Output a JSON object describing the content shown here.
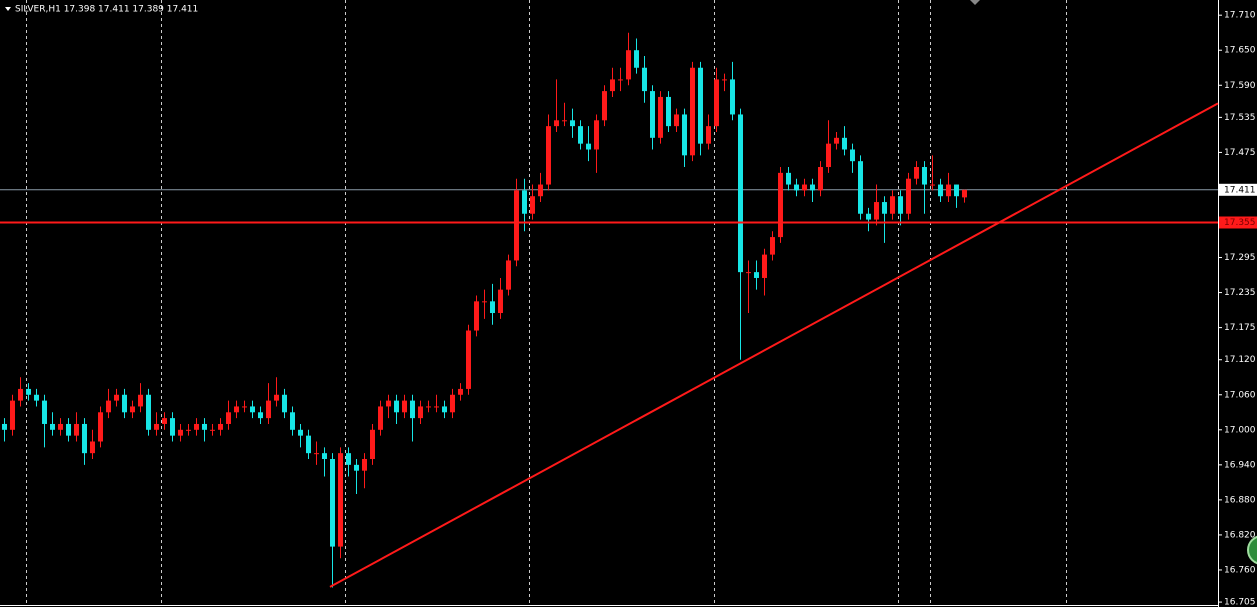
{
  "chart_data": {
    "type": "candlestick",
    "title": "SILVER,H1 17.398 17.411 17.389 17.411",
    "up_color": "#ff1a1a",
    "down_color": "#17e6e6",
    "open": [
      17.01,
      17.0,
      17.05,
      17.07,
      17.06,
      17.05,
      17.01,
      17.0,
      17.01,
      16.99,
      17.01,
      16.96,
      16.98,
      17.03,
      17.05,
      17.06,
      17.03,
      17.04,
      17.06,
      17.0,
      17.01,
      17.02,
      16.99,
      17.0,
      17.0,
      17.01,
      17.0,
      17.0,
      17.01,
      17.03,
      17.04,
      17.04,
      17.03,
      17.02,
      17.05,
      17.06,
      17.03,
      17.0,
      16.99,
      16.96,
      16.96,
      16.95,
      16.8,
      16.96,
      16.94,
      16.93,
      16.95,
      17.0,
      17.04,
      17.05,
      17.03,
      17.05,
      17.02,
      17.04,
      17.04,
      17.04,
      17.03,
      17.06,
      17.07,
      17.17,
      17.22,
      17.22,
      17.2,
      17.24,
      17.29,
      17.41,
      17.37,
      17.4,
      17.42,
      17.52,
      17.53,
      17.53,
      17.52,
      17.49,
      17.48,
      17.53,
      17.58,
      17.6,
      17.6,
      17.65,
      17.62,
      17.58,
      17.5,
      17.57,
      17.52,
      17.54,
      17.47,
      17.62,
      17.49,
      17.52,
      17.6,
      17.6,
      17.54,
      17.27,
      17.27,
      17.26,
      17.3,
      17.33,
      17.44,
      17.42,
      17.41,
      17.42,
      17.41,
      17.45,
      17.49,
      17.5,
      17.48,
      17.46,
      17.37,
      17.36,
      17.39,
      17.37,
      17.4,
      17.37,
      17.43,
      17.45,
      17.42,
      17.42,
      17.4,
      17.42,
      17.398
    ],
    "high": [
      17.02,
      17.06,
      17.09,
      17.08,
      17.07,
      17.06,
      17.03,
      17.02,
      17.02,
      17.03,
      17.02,
      17.0,
      17.04,
      17.07,
      17.07,
      17.07,
      17.05,
      17.08,
      17.07,
      17.03,
      17.03,
      17.03,
      17.01,
      17.01,
      17.02,
      17.02,
      17.01,
      17.02,
      17.05,
      17.05,
      17.05,
      17.05,
      17.04,
      17.08,
      17.09,
      17.07,
      17.04,
      17.01,
      17.0,
      16.98,
      16.97,
      16.96,
      16.97,
      16.97,
      16.95,
      16.96,
      17.01,
      17.05,
      17.06,
      17.06,
      17.06,
      17.06,
      17.05,
      17.05,
      17.06,
      17.05,
      17.07,
      17.08,
      17.18,
      17.23,
      17.24,
      17.25,
      17.26,
      17.3,
      17.43,
      17.43,
      17.42,
      17.44,
      17.54,
      17.6,
      17.56,
      17.55,
      17.53,
      17.52,
      17.54,
      17.59,
      17.62,
      17.62,
      17.68,
      17.67,
      17.64,
      17.59,
      17.58,
      17.58,
      17.55,
      17.55,
      17.63,
      17.63,
      17.54,
      17.62,
      17.61,
      17.63,
      17.55,
      17.29,
      17.29,
      17.31,
      17.34,
      17.45,
      17.45,
      17.43,
      17.43,
      17.43,
      17.46,
      17.53,
      17.51,
      17.52,
      17.49,
      17.47,
      17.38,
      17.42,
      17.4,
      17.41,
      17.41,
      17.44,
      17.46,
      17.46,
      17.47,
      17.43,
      17.44,
      17.42,
      17.411
    ],
    "low": [
      16.98,
      16.99,
      17.04,
      17.05,
      17.04,
      16.97,
      16.99,
      16.99,
      16.98,
      16.98,
      16.94,
      16.95,
      16.97,
      17.02,
      17.04,
      17.02,
      17.02,
      17.03,
      16.99,
      16.99,
      17.0,
      16.98,
      16.98,
      16.99,
      16.99,
      16.98,
      16.99,
      16.99,
      17.0,
      17.02,
      17.03,
      17.02,
      17.01,
      17.01,
      17.04,
      17.02,
      16.99,
      16.97,
      16.95,
      16.94,
      16.92,
      16.73,
      16.78,
      16.92,
      16.89,
      16.9,
      16.94,
      16.99,
      17.02,
      17.01,
      17.02,
      16.98,
      17.01,
      17.03,
      17.03,
      17.02,
      17.02,
      17.05,
      17.06,
      17.16,
      17.19,
      17.18,
      17.19,
      17.23,
      17.28,
      17.34,
      17.36,
      17.39,
      17.41,
      17.51,
      17.52,
      17.5,
      17.48,
      17.46,
      17.44,
      17.52,
      17.57,
      17.58,
      17.59,
      17.61,
      17.56,
      17.48,
      17.49,
      17.51,
      17.51,
      17.45,
      17.46,
      17.47,
      17.48,
      17.51,
      17.58,
      17.53,
      17.12,
      17.2,
      17.24,
      17.23,
      17.29,
      17.32,
      17.41,
      17.4,
      17.4,
      17.39,
      17.4,
      17.44,
      17.48,
      17.47,
      17.44,
      17.36,
      17.34,
      17.35,
      17.32,
      17.36,
      17.35,
      17.36,
      17.42,
      17.37,
      17.41,
      17.39,
      17.39,
      17.38,
      17.389
    ],
    "close": [
      17.0,
      17.05,
      17.07,
      17.06,
      17.05,
      17.01,
      17.0,
      17.01,
      16.99,
      17.01,
      16.96,
      16.98,
      17.03,
      17.05,
      17.06,
      17.03,
      17.04,
      17.06,
      17.0,
      17.01,
      17.02,
      16.99,
      17.0,
      17.0,
      17.01,
      17.0,
      17.0,
      17.01,
      17.03,
      17.04,
      17.04,
      17.03,
      17.02,
      17.05,
      17.06,
      17.03,
      17.0,
      16.99,
      16.96,
      16.96,
      16.95,
      16.8,
      16.96,
      16.94,
      16.93,
      16.95,
      17.0,
      17.04,
      17.05,
      17.03,
      17.05,
      17.02,
      17.04,
      17.04,
      17.04,
      17.03,
      17.06,
      17.07,
      17.17,
      17.22,
      17.22,
      17.2,
      17.24,
      17.29,
      17.41,
      17.37,
      17.4,
      17.42,
      17.52,
      17.53,
      17.53,
      17.52,
      17.49,
      17.48,
      17.53,
      17.58,
      17.6,
      17.6,
      17.65,
      17.62,
      17.58,
      17.5,
      17.57,
      17.52,
      17.54,
      17.47,
      17.62,
      17.49,
      17.52,
      17.6,
      17.6,
      17.54,
      17.27,
      17.27,
      17.26,
      17.3,
      17.33,
      17.44,
      17.42,
      17.41,
      17.42,
      17.41,
      17.45,
      17.49,
      17.5,
      17.48,
      17.46,
      17.37,
      17.36,
      17.39,
      17.37,
      17.4,
      17.37,
      17.43,
      17.45,
      17.42,
      17.42,
      17.4,
      17.42,
      17.4,
      17.411
    ],
    "ylim": [
      16.7,
      17.736
    ],
    "yticks": [
      {
        "value": 17.71,
        "label": "17.710"
      },
      {
        "value": 17.65,
        "label": "17.650"
      },
      {
        "value": 17.59,
        "label": "17.590"
      },
      {
        "value": 17.535,
        "label": "17.535"
      },
      {
        "value": 17.475,
        "label": "17.475"
      },
      {
        "value": 17.295,
        "label": "17.295"
      },
      {
        "value": 17.235,
        "label": "17.235"
      },
      {
        "value": 17.175,
        "label": "17.175"
      },
      {
        "value": 17.12,
        "label": "17.120"
      },
      {
        "value": 17.06,
        "label": "17.060"
      },
      {
        "value": 17.0,
        "label": "17.000"
      },
      {
        "value": 16.94,
        "label": "16.940"
      },
      {
        "value": 16.88,
        "label": "16.880"
      },
      {
        "value": 16.82,
        "label": "16.820"
      },
      {
        "value": 16.76,
        "label": "16.760"
      },
      {
        "value": 16.705,
        "label": "16.705"
      }
    ],
    "current_price": {
      "value": 17.411,
      "label": "17.411",
      "color": "#8a9aa8"
    },
    "level_line": {
      "value": 17.355,
      "label": "17.355",
      "color": "#ff1a1a"
    },
    "trendline": {
      "y": [
        16.731,
        17.559
      ],
      "color": "#ff1a1a"
    },
    "grid": false
  }
}
